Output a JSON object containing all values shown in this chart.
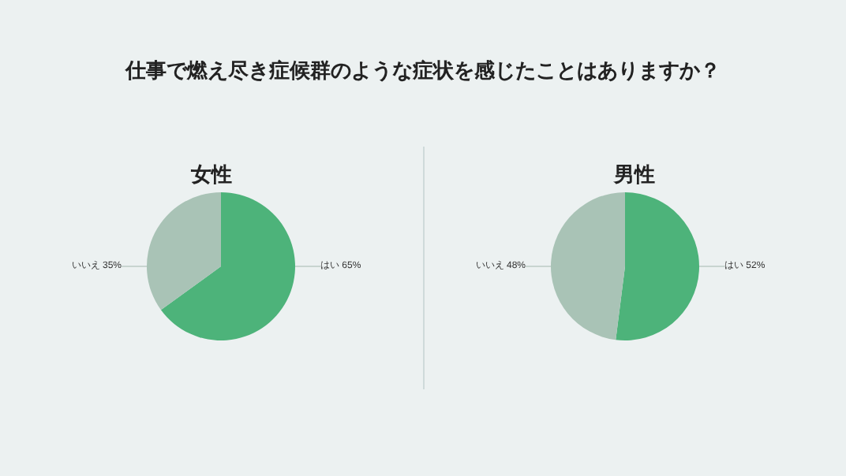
{
  "chart_data": [
    {
      "type": "pie",
      "title": "女性",
      "annotations": [
        "仕事で燃え尽き症候群のような症状を感じたことはありますか？"
      ],
      "categories": [
        "はい",
        "いいえ"
      ],
      "values": [
        65,
        35
      ],
      "value_labels": [
        "65%",
        "35%"
      ],
      "colors": [
        "#4db37a",
        "#a9c3b6"
      ],
      "legend": false
    },
    {
      "type": "pie",
      "title": "男性",
      "categories": [
        "はい",
        "いいえ"
      ],
      "values": [
        52,
        48
      ],
      "value_labels": [
        "52%",
        "48%"
      ],
      "colors": [
        "#4db37a",
        "#a9c3b6"
      ],
      "legend": false
    }
  ]
}
